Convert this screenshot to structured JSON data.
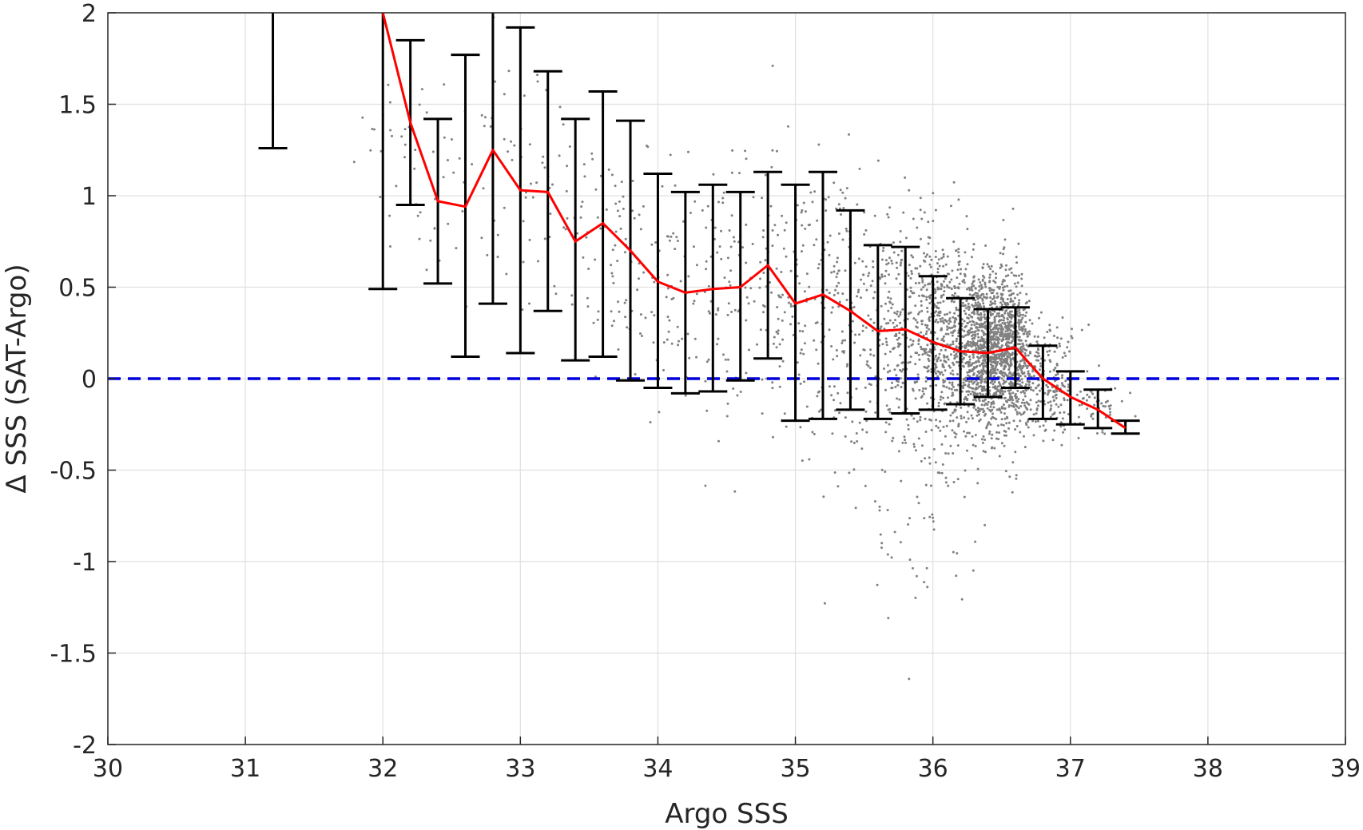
{
  "chart_data": {
    "type": "scatter",
    "title": "",
    "xlabel": "Argo SSS",
    "ylabel": "Δ SSS (SAT-Argo)",
    "xlim": [
      30,
      39
    ],
    "ylim": [
      -2,
      2
    ],
    "xticks": [
      30,
      31,
      32,
      33,
      34,
      35,
      36,
      37,
      38,
      39
    ],
    "yticks": [
      -2,
      -1.5,
      -1,
      -0.5,
      0,
      0.5,
      1,
      1.5,
      2
    ],
    "xtick_labels": [
      "30",
      "31",
      "32",
      "33",
      "34",
      "35",
      "36",
      "37",
      "38",
      "39"
    ],
    "ytick_labels": [
      "-2",
      "-1.5",
      "-1",
      "-0.5",
      "0",
      "0.5",
      "1",
      "1.5",
      "2"
    ],
    "grid": true,
    "colors": {
      "scatter": "#808080",
      "mean_line": "#ff0000",
      "error_bars": "#000000",
      "zero_line": "#0000dd",
      "grid": "#e0e0e0",
      "axes": "#262626"
    },
    "zero_line": {
      "y": 0,
      "style": "dashed"
    },
    "bins": {
      "x": [
        31.2,
        32.0,
        32.2,
        32.4,
        32.6,
        32.8,
        33.0,
        33.2,
        33.4,
        33.6,
        33.8,
        34.0,
        34.2,
        34.4,
        34.6,
        34.8,
        35.0,
        35.2,
        35.4,
        35.6,
        35.8,
        36.0,
        36.2,
        36.4,
        36.6,
        36.8,
        37.0,
        37.2,
        37.4
      ],
      "mean": [
        null,
        2.0,
        1.4,
        0.97,
        0.94,
        1.25,
        1.03,
        1.02,
        0.75,
        0.85,
        0.7,
        0.53,
        0.47,
        0.49,
        0.5,
        0.62,
        0.41,
        0.46,
        0.37,
        0.26,
        0.27,
        0.2,
        0.15,
        0.14,
        0.17,
        0.0,
        -0.1,
        -0.17,
        -0.27
      ],
      "lower": [
        1.26,
        0.49,
        0.95,
        0.52,
        0.12,
        0.41,
        0.14,
        0.37,
        0.1,
        0.12,
        -0.01,
        -0.05,
        -0.08,
        -0.07,
        -0.01,
        0.11,
        -0.23,
        -0.22,
        -0.17,
        -0.22,
        -0.19,
        -0.17,
        -0.14,
        -0.1,
        -0.05,
        -0.22,
        -0.25,
        -0.27,
        -0.3
      ],
      "upper": [
        2.0,
        2.0,
        1.85,
        1.42,
        1.77,
        2.0,
        1.92,
        1.68,
        1.42,
        1.57,
        1.41,
        1.12,
        1.02,
        1.06,
        1.02,
        1.13,
        1.06,
        1.13,
        0.92,
        0.73,
        0.72,
        0.56,
        0.44,
        0.38,
        0.39,
        0.18,
        0.04,
        -0.06,
        -0.23
      ]
    },
    "scatter_clusters": [
      {
        "cx": 32.1,
        "cy": 1.3,
        "sx": 0.15,
        "sy": 0.22,
        "n": 25
      },
      {
        "cx": 32.5,
        "cy": 1.0,
        "sx": 0.15,
        "sy": 0.3,
        "n": 30
      },
      {
        "cx": 32.9,
        "cy": 1.1,
        "sx": 0.15,
        "sy": 0.35,
        "n": 30
      },
      {
        "cx": 33.3,
        "cy": 0.9,
        "sx": 0.15,
        "sy": 0.35,
        "n": 40
      },
      {
        "cx": 33.7,
        "cy": 0.75,
        "sx": 0.15,
        "sy": 0.35,
        "n": 60
      },
      {
        "cx": 34.1,
        "cy": 0.5,
        "sx": 0.15,
        "sy": 0.32,
        "n": 70
      },
      {
        "cx": 34.5,
        "cy": 0.5,
        "sx": 0.15,
        "sy": 0.32,
        "n": 80
      },
      {
        "cx": 34.9,
        "cy": 0.4,
        "sx": 0.15,
        "sy": 0.4,
        "n": 110
      },
      {
        "cx": 35.3,
        "cy": 0.38,
        "sx": 0.15,
        "sy": 0.4,
        "n": 160
      },
      {
        "cx": 35.7,
        "cy": 0.28,
        "sx": 0.15,
        "sy": 0.35,
        "n": 250
      },
      {
        "cx": 36.05,
        "cy": 0.2,
        "sx": 0.12,
        "sy": 0.3,
        "n": 450
      },
      {
        "cx": 36.35,
        "cy": 0.16,
        "sx": 0.11,
        "sy": 0.22,
        "n": 900
      },
      {
        "cx": 36.55,
        "cy": 0.14,
        "sx": 0.09,
        "sy": 0.22,
        "n": 700
      },
      {
        "cx": 36.85,
        "cy": -0.02,
        "sx": 0.12,
        "sy": 0.15,
        "n": 220
      },
      {
        "cx": 37.2,
        "cy": -0.16,
        "sx": 0.1,
        "sy": 0.06,
        "n": 40
      },
      {
        "cx": 35.9,
        "cy": -0.8,
        "sx": 0.3,
        "sy": 0.35,
        "n": 60
      }
    ]
  }
}
